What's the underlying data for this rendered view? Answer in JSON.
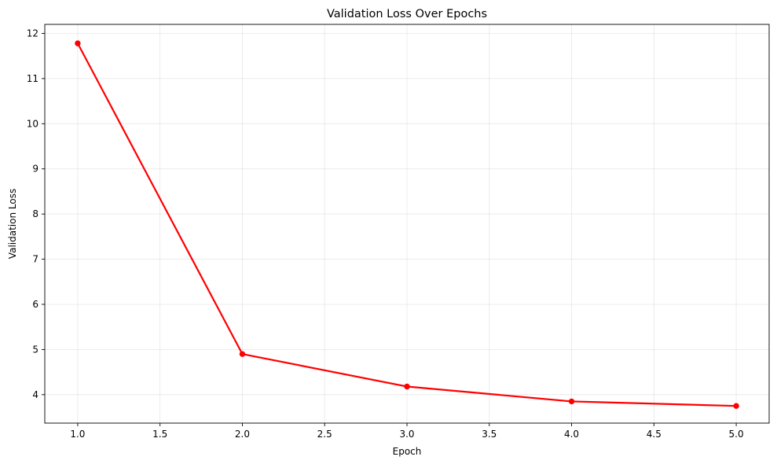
{
  "chart_data": {
    "type": "line",
    "title": "Validation Loss Over Epochs",
    "xlabel": "Epoch",
    "ylabel": "Validation Loss",
    "xlim": [
      0.8,
      5.2
    ],
    "ylim": [
      3.37,
      12.2
    ],
    "x_ticks": [
      1.0,
      1.5,
      2.0,
      2.5,
      3.0,
      3.5,
      4.0,
      4.5,
      5.0
    ],
    "x_tick_labels": [
      "1.0",
      "1.5",
      "2.0",
      "2.5",
      "3.0",
      "3.5",
      "4.0",
      "4.5",
      "5.0"
    ],
    "y_ticks": [
      4,
      5,
      6,
      7,
      8,
      9,
      10,
      11,
      12
    ],
    "y_tick_labels": [
      "4",
      "5",
      "6",
      "7",
      "8",
      "9",
      "10",
      "11",
      "12"
    ],
    "grid": true,
    "legend": "none",
    "series": [
      {
        "x": [
          1,
          2,
          3,
          4,
          5
        ],
        "values": [
          11.78,
          4.9,
          4.18,
          3.85,
          3.75
        ],
        "color": "#ff0000",
        "marker": "circle"
      }
    ]
  }
}
